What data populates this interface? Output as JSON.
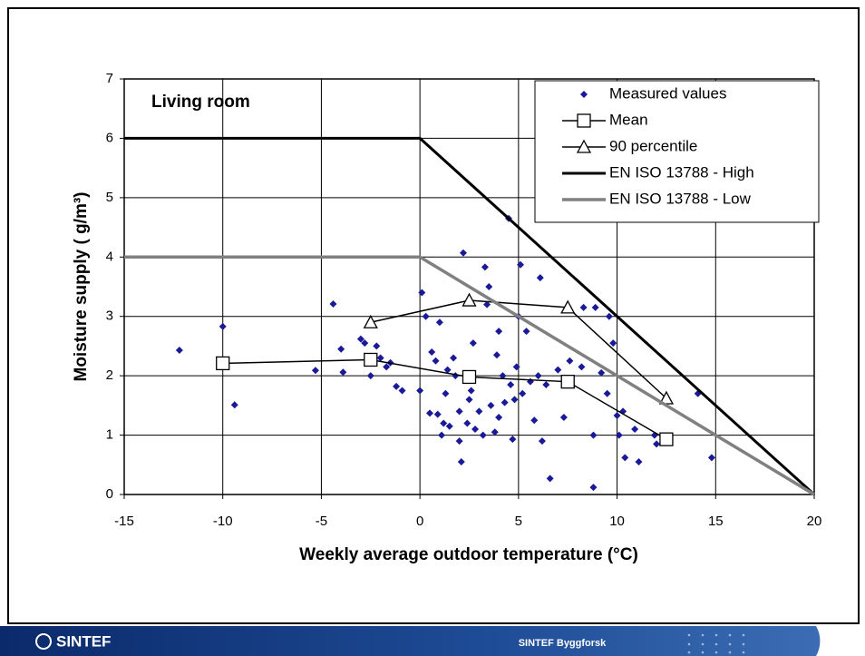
{
  "chart_data": {
    "type": "scatter",
    "annotation": "Living room",
    "xlabel": "Weekly average outdoor temperature (°C)",
    "ylabel": "Moisture supply ( g/m³)",
    "xlim": [
      -15,
      20
    ],
    "xticks": [
      -15,
      -10,
      -5,
      0,
      5,
      10,
      15,
      20
    ],
    "ylim": [
      0,
      7
    ],
    "yticks": [
      0,
      1,
      2,
      3,
      4,
      5,
      6,
      7
    ],
    "grid": true,
    "legend": "upper right",
    "series": [
      {
        "name": "Measured values",
        "color": "#1a1a99",
        "kind": "points",
        "x": [
          -12.2,
          -10,
          -9.4,
          -5.3,
          -4.4,
          -4,
          -3.9,
          -3,
          -2.8,
          -2.5,
          -2.2,
          -2,
          -1.7,
          -1.5,
          -1.2,
          -0.9,
          0,
          0.1,
          0.3,
          0.5,
          0.6,
          0.8,
          0.9,
          1,
          1.1,
          1.2,
          1.3,
          1.4,
          1.5,
          1.7,
          1.8,
          2,
          2,
          2.1,
          2.2,
          2.4,
          2.5,
          2.6,
          2.7,
          2.8,
          3,
          3.2,
          3.3,
          3.4,
          3.5,
          3.6,
          3.8,
          3.9,
          4,
          4,
          4.2,
          4.3,
          4.5,
          4.6,
          4.7,
          4.8,
          4.9,
          5,
          5.1,
          5.2,
          5.4,
          5.6,
          5.8,
          6,
          6.1,
          6.2,
          6.4,
          6.6,
          7,
          7.3,
          7.6,
          8.2,
          8.3,
          8.8,
          8.8,
          8.9,
          9.2,
          9.5,
          9.6,
          9.8,
          10,
          10.1,
          10.3,
          10.4,
          10.9,
          11.1,
          11.9,
          12,
          14.1,
          14.8
        ],
        "values": [
          2.43,
          2.83,
          1.51,
          2.09,
          3.21,
          2.45,
          2.06,
          2.62,
          2.55,
          2.0,
          2.5,
          2.3,
          2.15,
          2.22,
          1.82,
          1.75,
          1.75,
          3.4,
          3.0,
          1.37,
          2.4,
          2.25,
          1.35,
          2.9,
          1.0,
          1.2,
          1.7,
          2.1,
          1.15,
          2.3,
          2.0,
          1.4,
          0.9,
          0.55,
          4.07,
          1.2,
          1.6,
          1.75,
          2.55,
          1.1,
          1.4,
          1.0,
          3.83,
          3.2,
          3.5,
          1.5,
          1.05,
          2.35,
          2.75,
          1.3,
          2.0,
          1.55,
          4.65,
          1.85,
          0.93,
          1.6,
          2.15,
          3.0,
          3.87,
          1.7,
          2.75,
          1.9,
          1.25,
          2.0,
          3.65,
          0.9,
          1.85,
          0.27,
          2.1,
          1.3,
          2.25,
          2.15,
          3.15,
          0.12,
          1.0,
          3.15,
          2.05,
          1.7,
          3.0,
          2.55,
          1.33,
          1.0,
          1.4,
          0.62,
          1.1,
          0.55,
          1.0,
          0.85,
          1.7,
          0.62
        ]
      },
      {
        "name": "Mean",
        "color": "#000000",
        "kind": "square",
        "x": [
          -10,
          -2.5,
          2.5,
          7.5,
          12.5
        ],
        "values": [
          2.21,
          2.27,
          1.98,
          1.9,
          0.93
        ]
      },
      {
        "name": "90 percentile",
        "color": "#000000",
        "kind": "triangle",
        "x": [
          -2.5,
          2.5,
          7.5,
          12.5
        ],
        "values": [
          2.9,
          3.27,
          3.15,
          1.62
        ]
      },
      {
        "name": "EN ISO 13788 - High",
        "color": "#000000",
        "kind": "thick",
        "x": [
          -15,
          0,
          20
        ],
        "values": [
          6,
          6,
          0
        ]
      },
      {
        "name": "EN ISO 13788 - Low",
        "color": "#808080",
        "kind": "gray",
        "x": [
          -15,
          0,
          20
        ],
        "values": [
          4,
          4,
          0
        ]
      }
    ]
  },
  "footer": {
    "logo": "SINTEF",
    "center": "SINTEF Byggforsk"
  }
}
